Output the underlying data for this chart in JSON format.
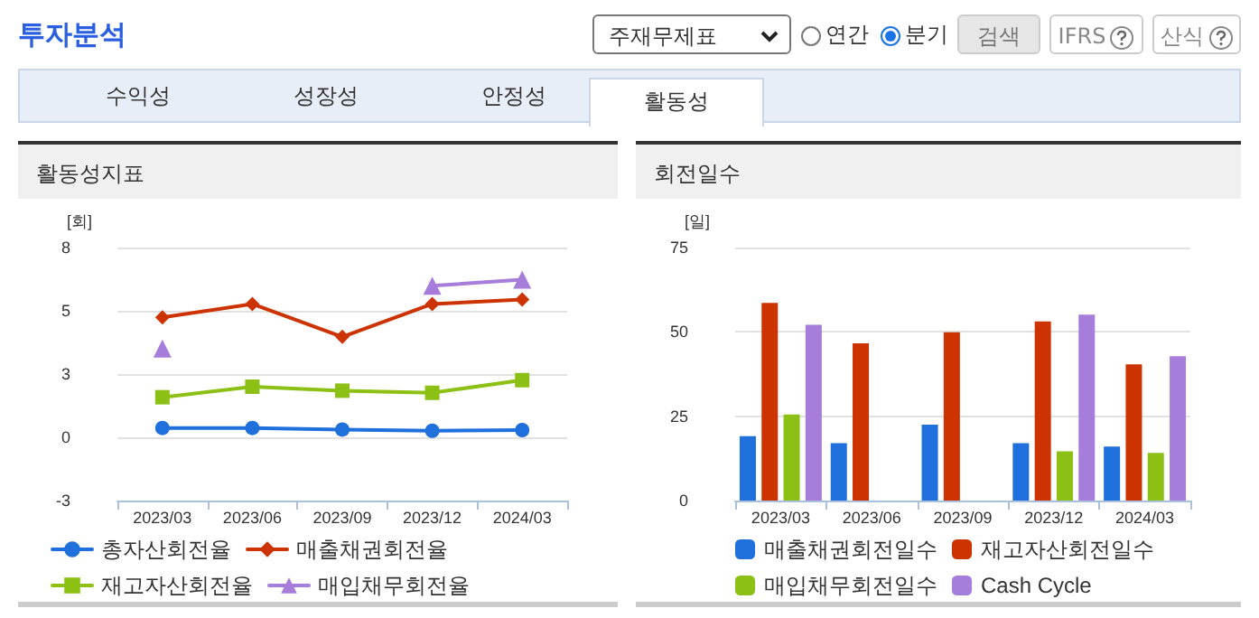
{
  "chart_data": [
    {
      "type": "other",
      "title": "투자분석",
      "annotations": [
        "주재무제표",
        "연간",
        "분기",
        "검색",
        "IFRS",
        "산식",
        "수익성",
        "성장성",
        "안정성",
        "활동성"
      ]
    },
    {
      "type": "line",
      "title": "활동성지표",
      "ylabel": "[회]",
      "categories": [
        "2023/03",
        "2023/06",
        "2023/09",
        "2023/12",
        "2024/03"
      ],
      "ylim": [
        -2.7,
        8.1
      ],
      "yticks": [
        {
          "value": -2.7,
          "label": "-3"
        },
        {
          "value": 0,
          "label": "0"
        },
        {
          "value": 2.7,
          "label": "3"
        },
        {
          "value": 5.4,
          "label": "5"
        },
        {
          "value": 8.1,
          "label": "8"
        }
      ],
      "grid": "y",
      "legend": "bottom",
      "line_style": "solid",
      "series": [
        {
          "name": "총자산회전율",
          "color": "#1f6fdc",
          "marker": "circle",
          "values": [
            0.4,
            0.4,
            0.33,
            0.28,
            0.31
          ]
        },
        {
          "name": "매출채권회전율",
          "color": "#cc3300",
          "marker": "diamond",
          "values": [
            5.12,
            5.69,
            4.29,
            5.69,
            5.88
          ]
        },
        {
          "name": "재고자산회전율",
          "color": "#8cc014",
          "marker": "square",
          "values": [
            1.71,
            2.16,
            1.99,
            1.9,
            2.44
          ]
        },
        {
          "name": "매입채무회전율",
          "color": "#a67ddb",
          "marker": "triangle",
          "values": [
            3.79,
            null,
            null,
            6.47,
            6.73
          ]
        }
      ]
    },
    {
      "type": "bar",
      "title": "회전일수",
      "ylabel": "[일]",
      "categories": [
        "2023/03",
        "2023/06",
        "2023/09",
        "2023/12",
        "2024/03"
      ],
      "ylim": [
        0,
        75
      ],
      "yticks": [
        0,
        25,
        50,
        75
      ],
      "grid": "y",
      "legend": "bottom",
      "series": [
        {
          "name": "매출채권회전일수",
          "color": "#1f6fdc",
          "values": [
            19.1,
            17.0,
            22.5,
            17.0,
            16.0
          ]
        },
        {
          "name": "재고자산회전일수",
          "color": "#cc3300",
          "values": [
            58.6,
            46.6,
            49.9,
            53.1,
            40.4
          ]
        },
        {
          "name": "매입채무회전일수",
          "color": "#8cc014",
          "values": [
            25.5,
            null,
            null,
            14.6,
            14.1
          ]
        },
        {
          "name": "Cash Cycle",
          "color": "#a67ddb",
          "values": [
            52.1,
            null,
            null,
            55.1,
            42.8
          ]
        }
      ]
    }
  ]
}
